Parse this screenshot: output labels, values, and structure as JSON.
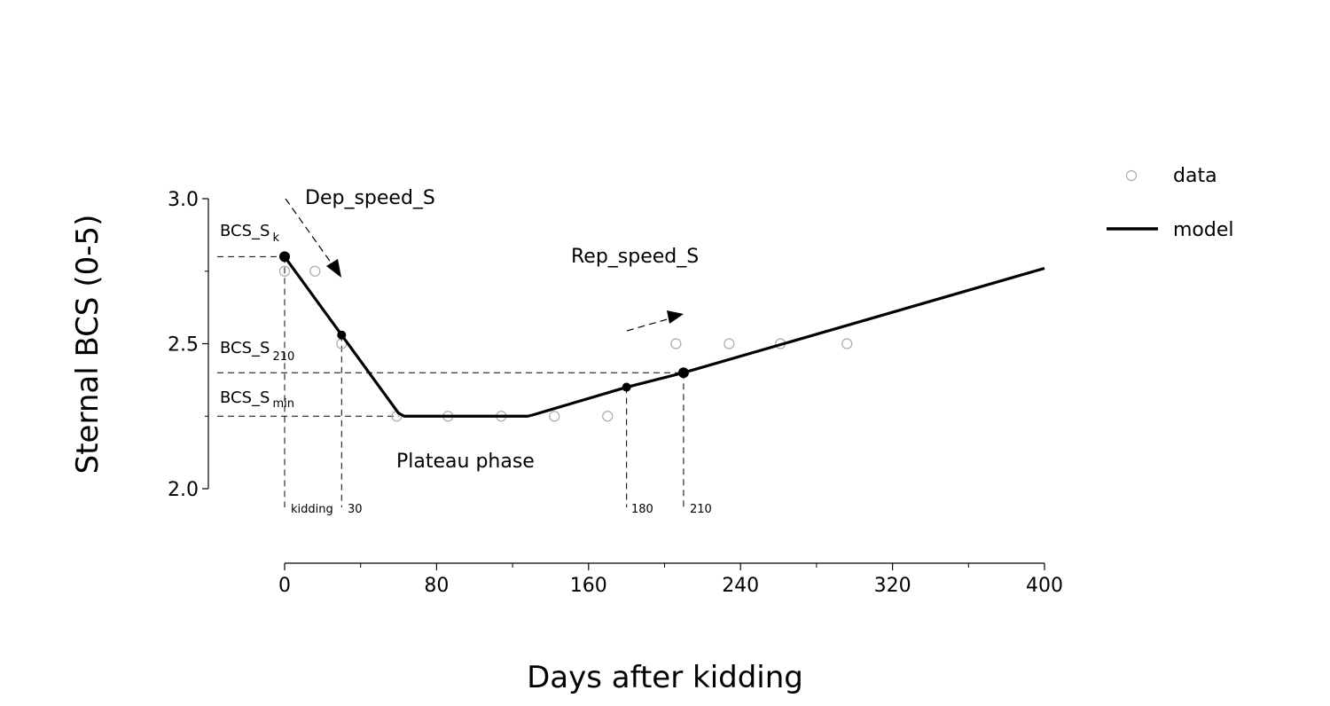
{
  "chart_data": {
    "type": "line",
    "xlabel": "Days after kidding",
    "ylabel": "Sternal BCS (0-5)",
    "xlim": [
      0,
      400
    ],
    "ylim": [
      2.0,
      3.0
    ],
    "x_ticks": [
      "0",
      "80",
      "160",
      "240",
      "320",
      "400"
    ],
    "y_ticks": [
      "2.0",
      "2.5",
      "3.0"
    ],
    "grid": false,
    "legend_position": "top-right",
    "series": [
      {
        "name": "data",
        "kind": "scatter",
        "x": [
          0,
          16,
          30,
          59,
          86,
          114,
          142,
          170,
          206,
          234,
          261,
          296
        ],
        "y": [
          2.75,
          2.75,
          2.5,
          2.25,
          2.25,
          2.25,
          2.25,
          2.25,
          2.5,
          2.5,
          2.5,
          2.5
        ]
      },
      {
        "name": "model",
        "kind": "line",
        "x": [
          0,
          30,
          60,
          63,
          128,
          131,
          180,
          210,
          400
        ],
        "y": [
          2.8,
          2.53,
          2.26,
          2.25,
          2.25,
          2.255,
          2.35,
          2.4,
          2.76
        ]
      }
    ],
    "key_points": [
      {
        "x": 0,
        "y": 2.8
      },
      {
        "x": 30,
        "y": 2.53
      },
      {
        "x": 180,
        "y": 2.35
      },
      {
        "x": 210,
        "y": 2.4
      }
    ],
    "annotations": {
      "dep_speed": "Dep_speed_S",
      "rep_speed": "Rep_speed_S",
      "plateau": "Plateau phase",
      "bcs_k_main": "BCS_S",
      "bcs_k_sub": "k",
      "bcs_210_main": "BCS_S",
      "bcs_210_sub": "210",
      "bcs_min_main": "BCS_S",
      "bcs_min_sub": "min",
      "vlabel_kidding": "kidding",
      "vlabel_30": "30",
      "vlabel_180": "180",
      "vlabel_210": "210"
    },
    "reference_levels": {
      "bcs_k": 2.8,
      "bcs_210": 2.4,
      "bcs_min": 2.25
    }
  }
}
